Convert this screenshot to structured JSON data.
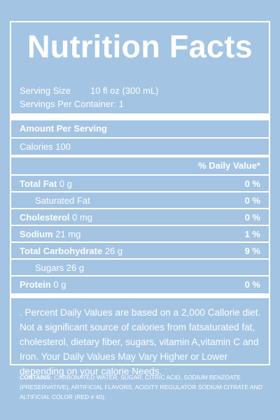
{
  "label": {
    "title": "Nutrition Facts",
    "serving_size_label": "Serving Size",
    "serving_size_value": "10 fl oz (300 mL)",
    "servings_per_container": "Servings Per Container: 1",
    "amount_per_serving": "Amount Per Serving",
    "calories": "Calories 100",
    "daily_value_header": "% Daily Value*",
    "nutrients": [
      {
        "name": "Total Fat",
        "amount": " 0 g",
        "dv": "0 %"
      },
      {
        "name": "Saturated Fat",
        "amount": "",
        "dv": "0 %"
      },
      {
        "name": "Cholesterol",
        "amount": " 0 mg",
        "dv": "0 %"
      },
      {
        "name": "Sodium",
        "amount": " 21 mg",
        "dv": "1 %"
      },
      {
        "name": "Total Carbohydrate",
        "amount": " 26 g",
        "dv": "9 %"
      },
      {
        "name": "Sugars 26 g",
        "amount": "",
        "dv": ""
      },
      {
        "name": "Protein",
        "amount": " 0 g",
        "dv": "0 %"
      }
    ],
    "footnote": ". Percent Daily Values are based on a 2,000 Callorie diet. Not a significant source of calories from fatsaturated fat, cholesterol, dietary fiber, sugars, vitamin A,vitamin C and Iron. Your Daily Values May Vary Higher or Lower depending on your calorie Needs."
  },
  "contains": {
    "label": "CONTAINS:",
    "text": " CARBONATED WATER, SUGAR, CITRIC ACID, SODIUM BENZOATE (PRESERVATIVE), ARTIFICIAL FLAVORS, ACIDITY REGULATOR SODIUM CITRATE AND ALTIFICIAL COLOR (RED # 40)."
  },
  "colors": {
    "background": "#a3c4e3",
    "text": "#ffffff"
  }
}
